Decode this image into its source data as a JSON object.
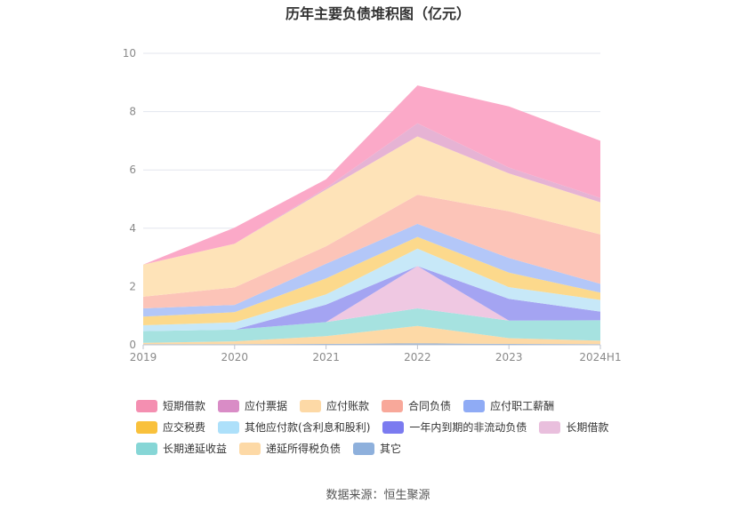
{
  "title": "历年主要负债堆积图（亿元）",
  "source": "数据来源：恒生聚源",
  "chart_data": {
    "type": "area",
    "stacked": true,
    "x": [
      "2019",
      "2020",
      "2021",
      "2022",
      "2023",
      "2024H1"
    ],
    "ylim": [
      0,
      10
    ],
    "yticks": [
      0,
      2,
      4,
      6,
      8,
      10
    ],
    "grid": true,
    "legend_position": "bottom",
    "series": [
      {
        "name": "其它",
        "color": "#8eb0dc",
        "values": [
          0.02,
          0.02,
          0.03,
          0.05,
          0.03,
          0.02
        ]
      },
      {
        "name": "递延所得税负债",
        "color": "#fdd9a6",
        "values": [
          0.05,
          0.1,
          0.27,
          0.6,
          0.2,
          0.12
        ]
      },
      {
        "name": "长期递延收益",
        "color": "#a6e2e0",
        "values": [
          0.4,
          0.4,
          0.48,
          0.6,
          0.6,
          0.7
        ]
      },
      {
        "name": "长期借款",
        "color": "#efc8e2",
        "values": [
          0,
          0,
          0,
          1.45,
          0,
          0
        ]
      },
      {
        "name": "一年内到期的非流动负债",
        "color": "#a4a4f2",
        "values": [
          0,
          0,
          0.6,
          0,
          0.75,
          0.3
        ]
      },
      {
        "name": "其他应付款(含利息和股利)",
        "color": "#c7e8f8",
        "values": [
          0.2,
          0.25,
          0.35,
          0.6,
          0.4,
          0.4
        ]
      },
      {
        "name": "应交税费",
        "color": "#fcd98c",
        "values": [
          0.3,
          0.35,
          0.55,
          0.4,
          0.5,
          0.25
        ]
      },
      {
        "name": "应付职工薪酬",
        "color": "#b3c7f8",
        "values": [
          0.28,
          0.25,
          0.5,
          0.45,
          0.5,
          0.3
        ]
      },
      {
        "name": "合同负债",
        "color": "#fcc4b8",
        "values": [
          0.4,
          0.6,
          0.6,
          1.0,
          1.6,
          1.7
        ]
      },
      {
        "name": "应付账款",
        "color": "#fee3b8",
        "values": [
          1.1,
          1.5,
          1.95,
          2.0,
          1.3,
          1.1
        ]
      },
      {
        "name": "应付票据",
        "color": "#e6b3d4",
        "values": [
          0,
          0,
          0.05,
          0.45,
          0.2,
          0.15
        ]
      },
      {
        "name": "短期借款",
        "color": "#fba9c8",
        "values": [
          0,
          0.55,
          0.3,
          1.3,
          2.1,
          1.96
        ]
      }
    ]
  },
  "legend": [
    {
      "name": "短期借款",
      "color": "#f48fb1"
    },
    {
      "name": "应付票据",
      "color": "#d98cc6"
    },
    {
      "name": "应付账款",
      "color": "#fdd9a6"
    },
    {
      "name": "合同负债",
      "color": "#f8a89a"
    },
    {
      "name": "应付职工薪酬",
      "color": "#8fabf5"
    },
    {
      "name": "应交税费",
      "color": "#f9c13c"
    },
    {
      "name": "其他应付款(含利息和股利)",
      "color": "#ade0fa"
    },
    {
      "name": "一年内到期的非流动负债",
      "color": "#7b7bf0"
    },
    {
      "name": "长期借款",
      "color": "#e9bfdd"
    },
    {
      "name": "长期递延收益",
      "color": "#86d6d6"
    },
    {
      "name": "递延所得税负债",
      "color": "#fdd9a6"
    },
    {
      "name": "其它",
      "color": "#8eb0dc"
    }
  ]
}
